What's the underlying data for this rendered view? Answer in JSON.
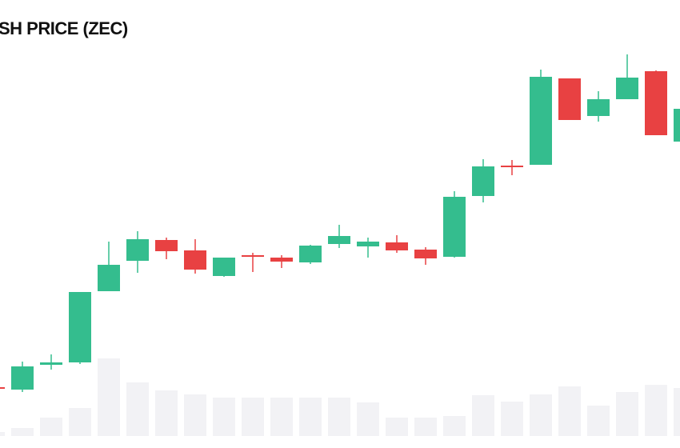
{
  "chart_data": {
    "type": "candlestick",
    "title": "SH PRICE (ZEC)",
    "ylim": [
      0,
      560
    ],
    "up_color": "#34bd8e",
    "down_color": "#e84142",
    "volume_color": "#f2f2f5",
    "open": [
      76,
      73,
      104,
      107,
      196,
      234,
      260,
      247,
      215,
      241,
      238,
      232,
      255,
      252,
      257,
      248,
      239,
      315,
      353,
      354,
      462,
      415,
      436,
      471,
      383
    ],
    "high": [
      77,
      108,
      117,
      195,
      258,
      271,
      263,
      261,
      238,
      244,
      241,
      254,
      279,
      263,
      266,
      251,
      321,
      361,
      360,
      473,
      462,
      446,
      492,
      472,
      424
    ],
    "low": [
      73,
      70,
      98,
      105,
      196,
      219,
      236,
      218,
      214,
      220,
      225,
      230,
      250,
      238,
      244,
      229,
      238,
      307,
      341,
      354,
      410,
      408,
      436,
      391,
      383
    ],
    "close": [
      74,
      102,
      107,
      195,
      229,
      261,
      246,
      223,
      238,
      239,
      233,
      253,
      265,
      258,
      247,
      237,
      314,
      352,
      351,
      464,
      410,
      436,
      463,
      391,
      424
    ],
    "volume": [
      5,
      10,
      23,
      35,
      97,
      67,
      57,
      52,
      48,
      48,
      48,
      48,
      48,
      42,
      23,
      23,
      25,
      51,
      43,
      52,
      62,
      38,
      55,
      64,
      60
    ]
  }
}
